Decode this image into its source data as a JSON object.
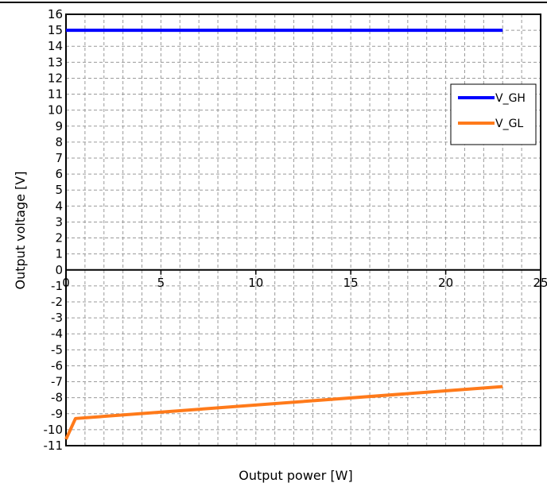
{
  "chart_data": {
    "type": "line",
    "xlabel": "Output power [W]",
    "ylabel": "Output voltage [V]",
    "xlim": [
      0,
      25
    ],
    "ylim": [
      -11,
      16
    ],
    "x_ticks": [
      0,
      5,
      10,
      15,
      20,
      25
    ],
    "y_ticks": [
      16,
      15,
      14,
      13,
      12,
      11,
      10,
      9,
      8,
      7,
      6,
      5,
      4,
      3,
      2,
      1,
      0,
      -1,
      -2,
      -3,
      -4,
      -5,
      -6,
      -7,
      -8,
      -9,
      -10,
      -11
    ],
    "grid": true,
    "legend_position": "right",
    "series": [
      {
        "name": "V_GH",
        "color": "#0000ff",
        "x": [
          0,
          23
        ],
        "y": [
          15,
          15
        ]
      },
      {
        "name": "V_GL",
        "color": "#ff7a1a",
        "x": [
          0,
          0.5,
          23
        ],
        "y": [
          -10.6,
          -9.3,
          -7.3
        ]
      }
    ]
  }
}
